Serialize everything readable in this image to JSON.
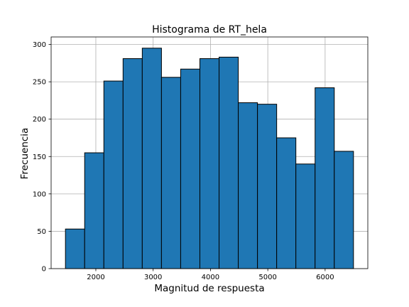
{
  "chart_data": {
    "type": "bar",
    "subtype": "histogram",
    "title": "Histograma de RT_hela",
    "xlabel": "Magnitud de respuesta",
    "ylabel": "Frecuencia",
    "bin_edges": [
      1470,
      1805,
      2140,
      2475,
      2810,
      3145,
      3480,
      3815,
      4150,
      4485,
      4820,
      5155,
      5490,
      5825,
      6160,
      6495
    ],
    "values": [
      53,
      155,
      251,
      281,
      295,
      256,
      267,
      281,
      283,
      222,
      220,
      175,
      140,
      242,
      157
    ],
    "xlim": [
      1220,
      6745
    ],
    "ylim": [
      0,
      310
    ],
    "xticks": [
      2000,
      3000,
      4000,
      5000,
      6000
    ],
    "yticks": [
      0,
      50,
      100,
      150,
      200,
      250,
      300
    ],
    "grid": true,
    "color": "#1f77b4",
    "edgecolor": "#000000"
  }
}
